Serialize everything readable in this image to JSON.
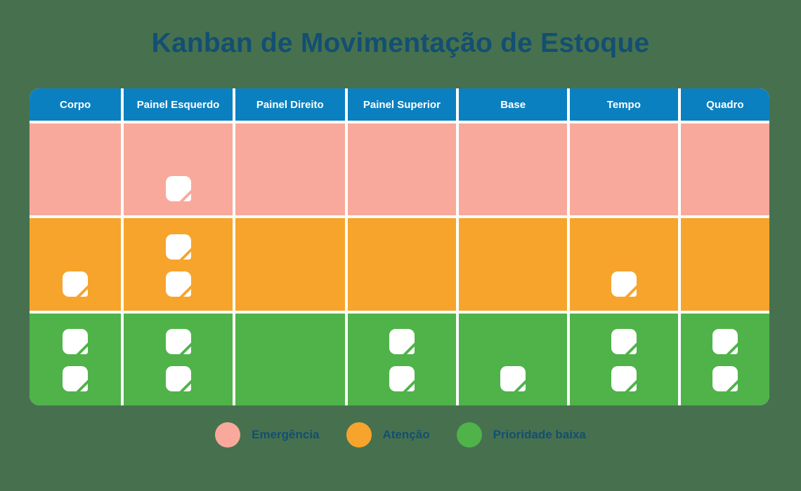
{
  "page": {
    "title": "Kanban de Movimentação de Estoque",
    "background_color": "#47714E",
    "title_color": "#134F72"
  },
  "board": {
    "header_color": "#0B80C0",
    "header_text_color": "#FFFFFF",
    "separator_color": "#FFFFFF",
    "card_icon": "sticky-note-icon",
    "card_color": "#FFFFFF",
    "columns": [
      {
        "id": "corpo",
        "label": "Corpo"
      },
      {
        "id": "painel-esquerdo",
        "label": "Painel Esquerdo"
      },
      {
        "id": "painel-direito",
        "label": "Painel Direito"
      },
      {
        "id": "painel-superior",
        "label": "Painel Superior"
      },
      {
        "id": "base",
        "label": "Base"
      },
      {
        "id": "tempo",
        "label": "Tempo"
      },
      {
        "id": "quadro",
        "label": "Quadro"
      }
    ],
    "rows": [
      {
        "id": "emergencia",
        "label": "Emergência",
        "color": "#F9A99B",
        "cards_per_column": [
          0,
          1,
          0,
          0,
          0,
          0,
          0
        ]
      },
      {
        "id": "atencao",
        "label": "Atenção",
        "color": "#F7A42C",
        "cards_per_column": [
          1,
          2,
          0,
          0,
          0,
          1,
          0
        ]
      },
      {
        "id": "prioridade-baixa",
        "label": "Prioridade baixa",
        "color": "#4FB34A",
        "cards_per_column": [
          2,
          2,
          0,
          2,
          1,
          2,
          2
        ]
      }
    ]
  },
  "legend": {
    "items": [
      {
        "id": "emergencia",
        "label": "Emergência",
        "color": "#F9A99B"
      },
      {
        "id": "atencao",
        "label": "Atenção",
        "color": "#F7A42C"
      },
      {
        "id": "prioridade-baixa",
        "label": "Prioridade baixa",
        "color": "#4FB34A"
      }
    ]
  }
}
